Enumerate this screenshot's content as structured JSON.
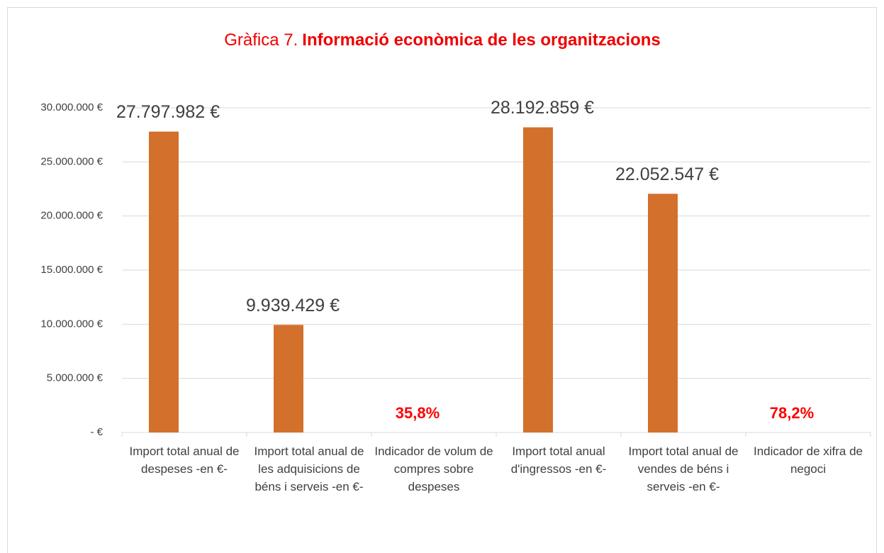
{
  "chart_data": {
    "type": "bar",
    "title": {
      "number": "Gràfica 7.",
      "text": "Informació econòmica de les organitzacions"
    },
    "title_color": "#ee0000",
    "categories": [
      "Import total anual de despeses -en €-",
      "Import total anual de les adquisicions de béns i serveis -en €-",
      "Indicador de volum de compres sobre despeses",
      "Import total anual d'ingressos -en €-",
      "Import total anual de vendes de béns i serveis -en €-",
      "Indicador de xifra de negoci"
    ],
    "values": [
      27797982,
      9939429,
      35.8,
      28192859,
      22052547,
      78.2
    ],
    "value_labels": [
      "27.797.982 €",
      "9.939.429 €",
      "35,8%",
      "28.192.859 €",
      "22.052.547 €",
      "78,2%"
    ],
    "value_label_colors": [
      "#404040",
      "#404040",
      "#ff0000",
      "#404040",
      "#404040",
      "#ff0000"
    ],
    "color": "#d2702c",
    "ylim": [
      0,
      30000000
    ],
    "yticks": [
      {
        "value": 0,
        "label": "-  €"
      },
      {
        "value": 5000000,
        "label": "5.000.000 €"
      },
      {
        "value": 10000000,
        "label": "10.000.000 €"
      },
      {
        "value": 15000000,
        "label": "15.000.000 €"
      },
      {
        "value": 20000000,
        "label": "20.000.000 €"
      },
      {
        "value": 25000000,
        "label": "25.000.000 €"
      },
      {
        "value": 30000000,
        "label": "30.000.000 €"
      }
    ],
    "grid": true
  }
}
